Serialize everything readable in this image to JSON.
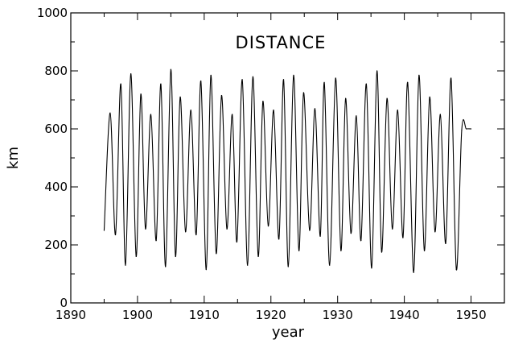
{
  "chart_data": {
    "type": "line",
    "title": "DISTANCE",
    "xlabel": "year",
    "ylabel": "km",
    "xlim": [
      1890,
      1955
    ],
    "ylim": [
      0,
      1000
    ],
    "xticks": [
      1890,
      1900,
      1910,
      1920,
      1930,
      1940,
      1950
    ],
    "yticks": [
      0,
      200,
      400,
      600,
      800,
      1000
    ],
    "grid": false,
    "series": [
      {
        "color": "#000000",
        "x": [
          1895.0,
          1895.9,
          1896.7,
          1897.5,
          1898.2,
          1899.0,
          1899.8,
          1900.5,
          1901.2,
          1902.0,
          1902.8,
          1903.5,
          1904.2,
          1905.0,
          1905.7,
          1906.4,
          1907.2,
          1908.0,
          1908.8,
          1909.5,
          1910.3,
          1911.0,
          1911.8,
          1912.6,
          1913.4,
          1914.2,
          1914.9,
          1915.7,
          1916.5,
          1917.3,
          1918.1,
          1918.8,
          1919.6,
          1920.4,
          1921.2,
          1921.9,
          1922.6,
          1923.4,
          1924.2,
          1924.9,
          1925.8,
          1926.6,
          1927.4,
          1928.0,
          1928.8,
          1929.7,
          1930.5,
          1931.2,
          1932.0,
          1932.8,
          1933.5,
          1934.3,
          1935.1,
          1935.9,
          1936.6,
          1937.4,
          1938.2,
          1939.0,
          1939.8,
          1940.5,
          1941.4,
          1942.2,
          1943.0,
          1943.8,
          1944.6,
          1945.4,
          1946.2,
          1947.0,
          1947.8,
          1948.6,
          1949.3,
          1950.0
        ],
        "y": [
          250,
          655,
          235,
          755,
          130,
          790,
          160,
          720,
          255,
          650,
          215,
          755,
          125,
          805,
          160,
          710,
          245,
          665,
          235,
          765,
          115,
          785,
          170,
          715,
          255,
          650,
          210,
          770,
          130,
          780,
          160,
          695,
          265,
          665,
          220,
          770,
          125,
          785,
          180,
          725,
          250,
          670,
          230,
          760,
          130,
          775,
          180,
          705,
          240,
          645,
          215,
          755,
          120,
          800,
          175,
          705,
          255,
          665,
          225,
          760,
          105,
          785,
          180,
          710,
          245,
          650,
          205,
          775,
          115,
          595,
          600,
          600
        ]
      }
    ]
  }
}
